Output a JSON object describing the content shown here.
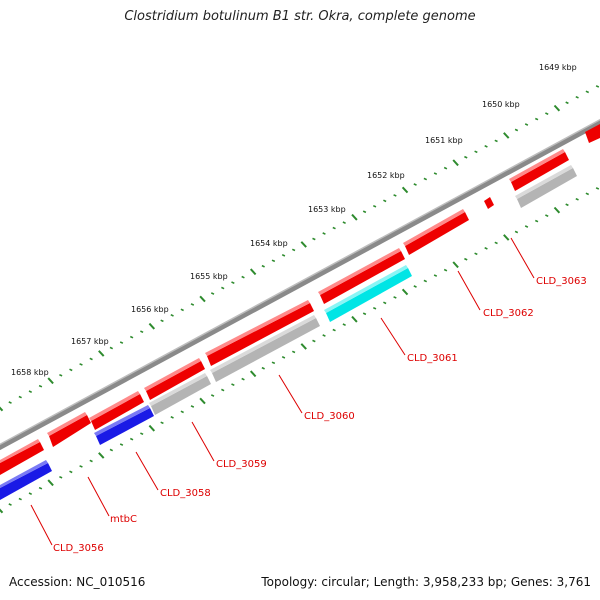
{
  "title": "Clostridium botulinum B1 str. Okra, complete genome",
  "footer": {
    "accession": "Accession: NC_010516",
    "summary": "Topology: circular; Length: 3,958,233 bp; Genes: 3,761"
  },
  "colors": {
    "backbone": "#8a8a8a",
    "forward": "#ee0000",
    "reverse_blue": "#1a1ae6",
    "reverse_gray": "#b4b4b4",
    "reverse_cyan": "#00e5e5",
    "ticks": "#2e8b2e",
    "label": "#dd0000"
  },
  "scale_labels": [
    "1649 kbp",
    "1650 kbp",
    "1651 kbp",
    "1652 kbp",
    "1653 kbp",
    "1654 kbp",
    "1655 kbp",
    "1656 kbp",
    "1657 kbp",
    "1658 kbp"
  ],
  "gene_labels": [
    "CLD_3063",
    "CLD_3062",
    "CLD_3061",
    "CLD_3060",
    "CLD_3059",
    "CLD_3058",
    "mtbC",
    "CLD_3056"
  ]
}
